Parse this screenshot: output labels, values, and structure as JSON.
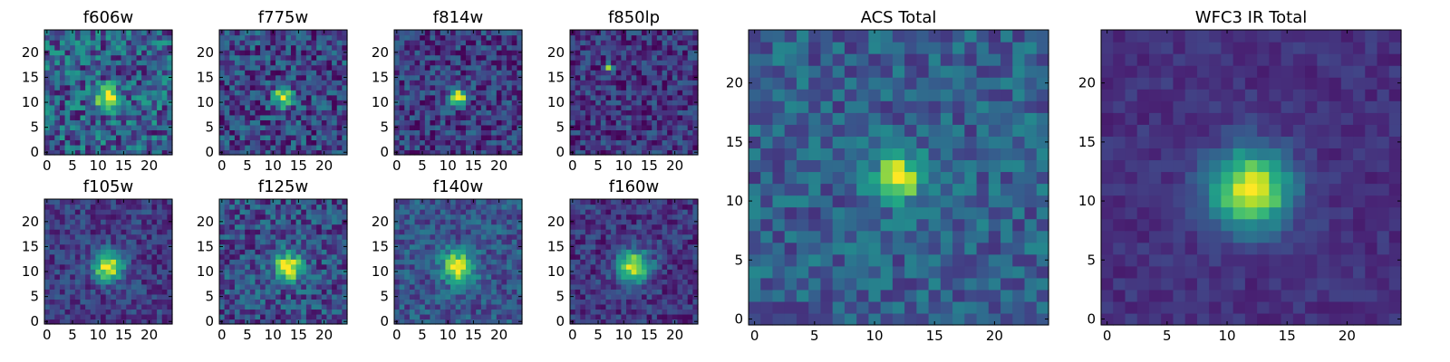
{
  "chart_data": [
    {
      "type": "heatmap",
      "title": "f606w",
      "x_ticks": [
        "0",
        "5",
        "10",
        "15",
        "20"
      ],
      "y_ticks": [
        "0",
        "5",
        "10",
        "15",
        "20"
      ],
      "xlim": [
        -0.5,
        24.5
      ],
      "ylim": [
        -0.5,
        24.5
      ],
      "colormap": "viridis",
      "grid_size": 25,
      "peak": [
        12,
        11
      ],
      "peak_sigma": 1.6,
      "noise_level": 0.33,
      "background_level": 0.3,
      "peak_amplitude": 0.7,
      "seed": 11
    },
    {
      "type": "heatmap",
      "title": "f775w",
      "x_ticks": [
        "0",
        "5",
        "10",
        "15",
        "20"
      ],
      "y_ticks": [
        "0",
        "5",
        "10",
        "15",
        "20"
      ],
      "xlim": [
        -0.5,
        24.5
      ],
      "ylim": [
        -0.5,
        24.5
      ],
      "colormap": "viridis",
      "grid_size": 25,
      "peak": [
        12,
        11
      ],
      "peak_sigma": 1.3,
      "noise_level": 0.28,
      "background_level": 0.22,
      "peak_amplitude": 0.78,
      "seed": 23
    },
    {
      "type": "heatmap",
      "title": "f814w",
      "x_ticks": [
        "0",
        "5",
        "10",
        "15",
        "20"
      ],
      "y_ticks": [
        "0",
        "5",
        "10",
        "15",
        "20"
      ],
      "xlim": [
        -0.5,
        24.5
      ],
      "ylim": [
        -0.5,
        24.5
      ],
      "colormap": "viridis",
      "grid_size": 25,
      "peak": [
        12,
        11
      ],
      "peak_sigma": 1.2,
      "noise_level": 0.24,
      "background_level": 0.18,
      "peak_amplitude": 0.82,
      "seed": 37
    },
    {
      "type": "heatmap",
      "title": "f850lp",
      "x_ticks": [
        "0",
        "5",
        "10",
        "15",
        "20"
      ],
      "y_ticks": [
        "0",
        "5",
        "10",
        "15",
        "20"
      ],
      "xlim": [
        -0.5,
        24.5
      ],
      "ylim": [
        -0.5,
        24.5
      ],
      "colormap": "viridis",
      "grid_size": 25,
      "peak": [
        7,
        17
      ],
      "peak_sigma": 0.5,
      "noise_level": 0.22,
      "background_level": 0.16,
      "peak_amplitude": 0.85,
      "seed": 41
    },
    {
      "type": "heatmap",
      "title": "f105w",
      "x_ticks": [
        "0",
        "5",
        "10",
        "15",
        "20"
      ],
      "y_ticks": [
        "0",
        "5",
        "10",
        "15",
        "20"
      ],
      "xlim": [
        -0.5,
        24.5
      ],
      "ylim": [
        -0.5,
        24.5
      ],
      "colormap": "viridis",
      "grid_size": 25,
      "peak": [
        12,
        11
      ],
      "peak_sigma": 2.0,
      "noise_level": 0.18,
      "background_level": 0.18,
      "peak_amplitude": 0.8,
      "seed": 53
    },
    {
      "type": "heatmap",
      "title": "f125w",
      "x_ticks": [
        "0",
        "5",
        "10",
        "15",
        "20"
      ],
      "y_ticks": [
        "0",
        "5",
        "10",
        "15",
        "20"
      ],
      "xlim": [
        -0.5,
        24.5
      ],
      "ylim": [
        -0.5,
        24.5
      ],
      "colormap": "viridis",
      "grid_size": 25,
      "peak": [
        13,
        11
      ],
      "peak_sigma": 2.0,
      "noise_level": 0.26,
      "background_level": 0.24,
      "peak_amplitude": 0.74,
      "seed": 67
    },
    {
      "type": "heatmap",
      "title": "f140w",
      "x_ticks": [
        "0",
        "5",
        "10",
        "15",
        "20"
      ],
      "y_ticks": [
        "0",
        "5",
        "10",
        "15",
        "20"
      ],
      "xlim": [
        -0.5,
        24.5
      ],
      "ylim": [
        -0.5,
        24.5
      ],
      "colormap": "viridis",
      "grid_size": 25,
      "peak": [
        12,
        11
      ],
      "peak_sigma": 2.2,
      "noise_level": 0.2,
      "background_level": 0.26,
      "peak_amplitude": 0.72,
      "seed": 71
    },
    {
      "type": "heatmap",
      "title": "f160w",
      "x_ticks": [
        "0",
        "5",
        "10",
        "15",
        "20"
      ],
      "y_ticks": [
        "0",
        "5",
        "10",
        "15",
        "20"
      ],
      "xlim": [
        -0.5,
        24.5
      ],
      "ylim": [
        -0.5,
        24.5
      ],
      "colormap": "viridis",
      "grid_size": 25,
      "peak": [
        12,
        11
      ],
      "peak_sigma": 2.2,
      "noise_level": 0.18,
      "background_level": 0.16,
      "peak_amplitude": 0.82,
      "seed": 83
    },
    {
      "type": "heatmap",
      "title": "ACS Total",
      "x_ticks": [
        "0",
        "5",
        "10",
        "15",
        "20"
      ],
      "y_ticks": [
        "0",
        "5",
        "10",
        "15",
        "20"
      ],
      "xlim": [
        -0.5,
        24.5
      ],
      "ylim": [
        -0.5,
        24.5
      ],
      "colormap": "viridis",
      "grid_size": 25,
      "peak": [
        12,
        12
      ],
      "peak_sigma": 1.4,
      "noise_level": 0.2,
      "background_level": 0.3,
      "peak_amplitude": 0.7,
      "seed": 97
    },
    {
      "type": "heatmap",
      "title": "WFC3 IR Total",
      "x_ticks": [
        "0",
        "5",
        "10",
        "15",
        "20"
      ],
      "y_ticks": [
        "0",
        "5",
        "10",
        "15",
        "20"
      ],
      "xlim": [
        -0.5,
        24.5
      ],
      "ylim": [
        -0.5,
        24.5
      ],
      "colormap": "viridis",
      "grid_size": 25,
      "peak": [
        12,
        11
      ],
      "peak_sigma": 2.3,
      "noise_level": 0.08,
      "background_level": 0.14,
      "peak_amplitude": 0.86,
      "seed": 101
    }
  ]
}
